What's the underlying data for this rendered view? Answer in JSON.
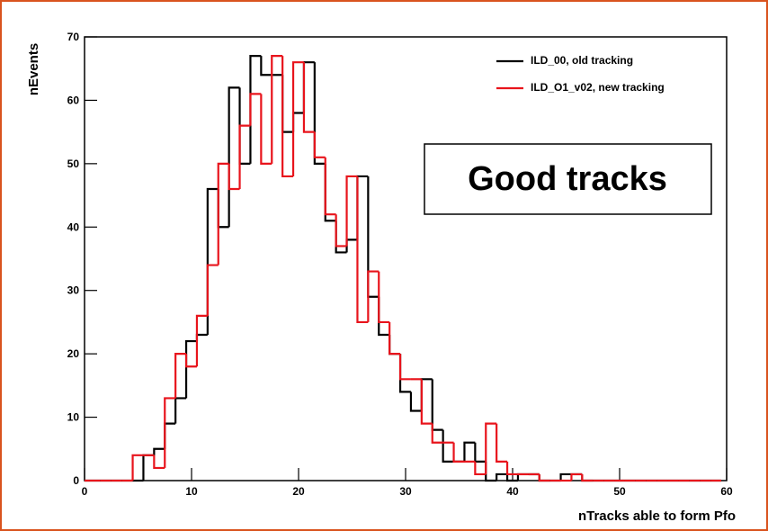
{
  "chart_data": {
    "type": "histogram",
    "xlabel": "nTracks able to form Pfo",
    "ylabel": "nEvents",
    "annotation": "Good tracks",
    "legend": "top-right",
    "grid": false,
    "xlim": [
      0,
      60
    ],
    "ylim": [
      0,
      70
    ],
    "xticks": [
      0,
      10,
      20,
      30,
      40,
      50,
      60
    ],
    "yticks": [
      0,
      10,
      20,
      30,
      40,
      50,
      60,
      70
    ],
    "bins": [
      -0.5,
      0.5,
      1.5,
      2.5,
      3.5,
      4.5,
      5.5,
      6.5,
      7.5,
      8.5,
      9.5,
      10.5,
      11.5,
      12.5,
      13.5,
      14.5,
      15.5,
      16.5,
      17.5,
      18.5,
      19.5,
      20.5,
      21.5,
      22.5,
      23.5,
      24.5,
      25.5,
      26.5,
      27.5,
      28.5,
      29.5,
      30.5,
      31.5,
      32.5,
      33.5,
      34.5,
      35.5,
      36.5,
      37.5,
      38.5,
      39.5,
      40.5,
      41.5,
      42.5,
      43.5,
      44.5,
      45.5,
      46.5,
      47.5,
      48.5,
      49.5,
      50.5,
      51.5,
      52.5,
      53.5,
      54.5,
      55.5,
      56.5,
      57.5,
      58.5,
      59.5
    ],
    "series": [
      {
        "name": "ILD_00, old tracking",
        "color": "#000000",
        "values": [
          0,
          0,
          0,
          0,
          0,
          0,
          4,
          5,
          9,
          13,
          22,
          23,
          46,
          40,
          62,
          50,
          67,
          64,
          64,
          55,
          58,
          66,
          50,
          41,
          36,
          38,
          48,
          29,
          23,
          20,
          14,
          11,
          16,
          8,
          3,
          3,
          6,
          3,
          0,
          1,
          0,
          1,
          1,
          0,
          0,
          1,
          1,
          0,
          0,
          0,
          0,
          0,
          0,
          0,
          0,
          0,
          0,
          0,
          0,
          0
        ]
      },
      {
        "name": "ILD_O1_v02, new tracking",
        "color": "#e8141c",
        "values": [
          0,
          0,
          0,
          0,
          0,
          4,
          4,
          2,
          13,
          20,
          18,
          26,
          34,
          50,
          46,
          56,
          61,
          50,
          67,
          48,
          66,
          55,
          51,
          42,
          37,
          48,
          25,
          33,
          25,
          20,
          16,
          16,
          9,
          6,
          6,
          3,
          3,
          1,
          9,
          3,
          1,
          1,
          1,
          0,
          0,
          0,
          1,
          0,
          0,
          0,
          0,
          0,
          0,
          0,
          0,
          0,
          0,
          0,
          0,
          0
        ]
      }
    ]
  }
}
